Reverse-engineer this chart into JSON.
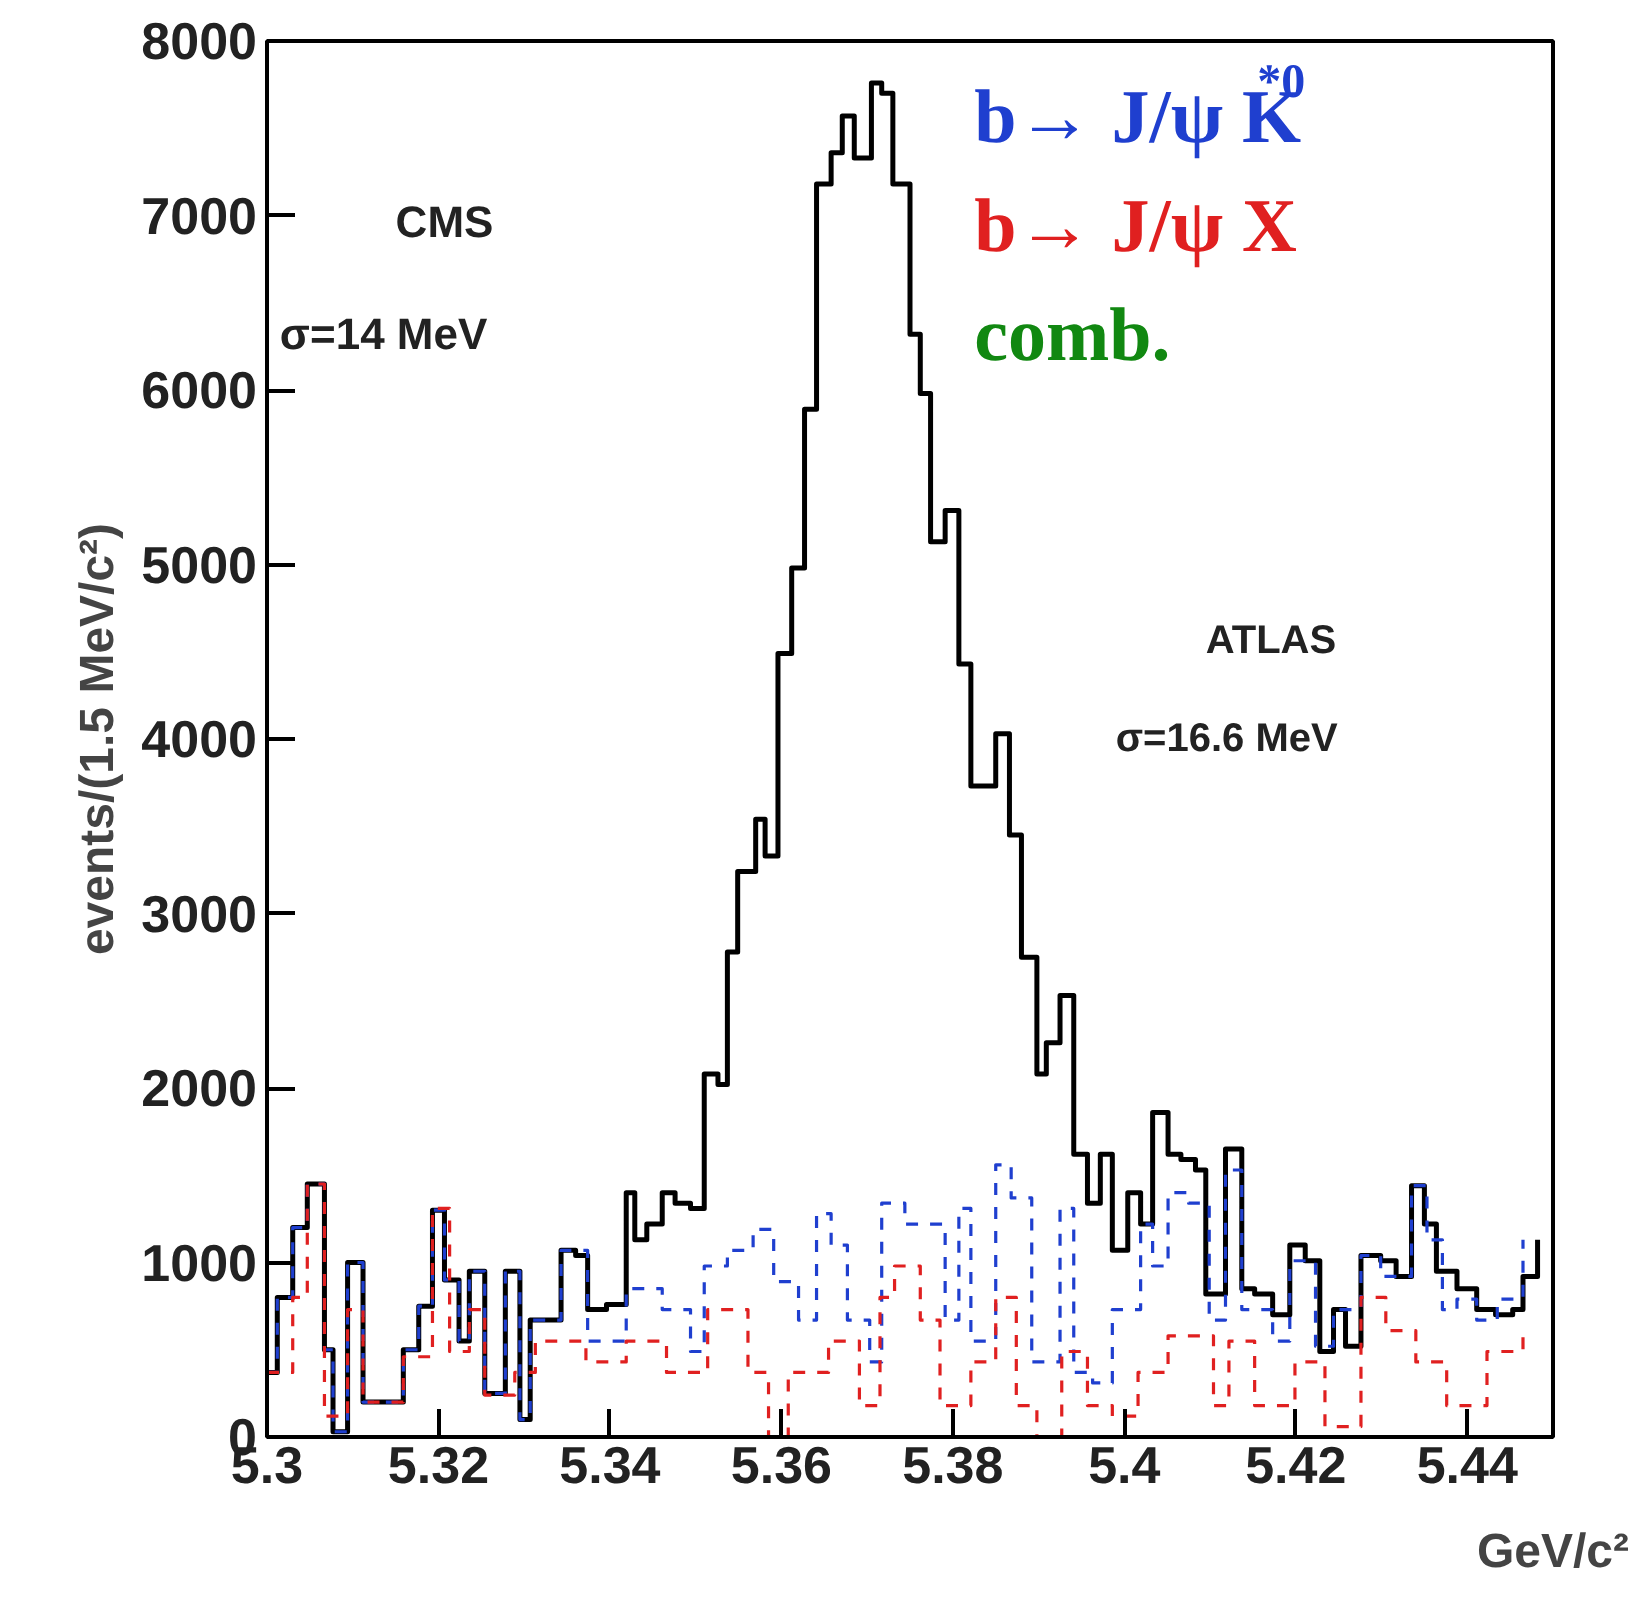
{
  "chart_data": {
    "type": "step",
    "xlabel": "GeV/c²",
    "ylabel": "events/(1.5 MeV/c²)",
    "xlim": [
      5.3,
      5.45
    ],
    "ylim": [
      0,
      8000
    ],
    "xticks": [
      5.3,
      5.32,
      5.34,
      5.36,
      5.38,
      5.4,
      5.42,
      5.44
    ],
    "yticks": [
      0,
      1000,
      2000,
      3000,
      4000,
      5000,
      6000,
      7000,
      8000
    ],
    "grid": false,
    "legend": "top right",
    "series": [
      {
        "color": "#000000",
        "line_style": "solid",
        "x": [
          5.3,
          5.3012,
          5.303,
          5.3047,
          5.3067,
          5.3077,
          5.3094,
          5.3112,
          5.3159,
          5.3177,
          5.3193,
          5.3207,
          5.3224,
          5.3236,
          5.3254,
          5.3278,
          5.3295,
          5.3307,
          5.3343,
          5.336,
          5.3374,
          5.3396,
          5.3419,
          5.3429,
          5.3443,
          5.3461,
          5.3476,
          5.3494,
          5.351,
          5.3526,
          5.3537,
          5.3549,
          5.357,
          5.3581,
          5.3596,
          5.3612,
          5.3627,
          5.3641,
          5.3658,
          5.3671,
          5.3685,
          5.3705,
          5.3717,
          5.373,
          5.375,
          5.3762,
          5.3774,
          5.3791,
          5.3807,
          5.3821,
          5.385,
          5.3866,
          5.388,
          5.3898,
          5.3909,
          5.3925,
          5.3941,
          5.3957,
          5.3972,
          5.3986,
          5.4004,
          5.4019,
          5.4033,
          5.4051,
          5.4066,
          5.4083,
          5.4095,
          5.4118,
          5.4137,
          5.4152,
          5.4173,
          5.4193,
          5.4211,
          5.4228,
          5.4244,
          5.4258,
          5.4276,
          5.4299,
          5.4317,
          5.4335,
          5.435,
          5.4364,
          5.4388,
          5.4411,
          5.4433,
          5.4453,
          5.4465,
          5.4482
        ],
        "values": [
          370,
          800,
          1200,
          1450,
          500,
          30,
          1000,
          200,
          500,
          750,
          1300,
          900,
          550,
          950,
          250,
          950,
          100,
          670,
          1070,
          1040,
          730,
          760,
          1400,
          1130,
          1220,
          1400,
          1340,
          1310,
          2080,
          2020,
          2780,
          3240,
          3540,
          3330,
          4490,
          4980,
          5890,
          7180,
          7360,
          7570,
          7330,
          7760,
          7700,
          7180,
          6320,
          5980,
          5130,
          5310,
          4430,
          3730,
          4030,
          3450,
          2750,
          2080,
          2260,
          2530,
          1620,
          1340,
          1620,
          1070,
          1400,
          1220,
          1860,
          1620,
          1590,
          1530,
          820,
          1650,
          850,
          820,
          700,
          1100,
          1010,
          490,
          730,
          520,
          1040,
          1010,
          920,
          1440,
          1220,
          950,
          850,
          730,
          700,
          730,
          920,
          1130
        ]
      },
      {
        "name": "b→ J/ψ K$^{*0}$",
        "color": "#1f3fcf",
        "line_style": "dashed",
        "x": [
          5.3,
          5.3012,
          5.303,
          5.3047,
          5.3067,
          5.3077,
          5.3094,
          5.3112,
          5.3159,
          5.3177,
          5.3193,
          5.3207,
          5.3224,
          5.3236,
          5.3254,
          5.3278,
          5.3295,
          5.3307,
          5.3343,
          5.3374,
          5.3419,
          5.3461,
          5.3494,
          5.351,
          5.3537,
          5.3567,
          5.3591,
          5.362,
          5.3641,
          5.3658,
          5.3677,
          5.3703,
          5.3717,
          5.3744,
          5.3774,
          5.3791,
          5.3807,
          5.3821,
          5.385,
          5.3868,
          5.3892,
          5.3925,
          5.3941,
          5.3963,
          5.3986,
          5.4019,
          5.4033,
          5.4051,
          5.4075,
          5.4099,
          5.4118,
          5.4137,
          5.4173,
          5.4193,
          5.4223,
          5.4244,
          5.4276,
          5.4299,
          5.4335,
          5.4353,
          5.4371,
          5.4388,
          5.4411,
          5.4435,
          5.4465
        ],
        "values": [
          370,
          800,
          1200,
          1450,
          500,
          30,
          1000,
          200,
          500,
          750,
          1300,
          900,
          550,
          950,
          250,
          950,
          100,
          670,
          1070,
          550,
          850,
          730,
          490,
          980,
          1070,
          1190,
          890,
          670,
          1280,
          1100,
          670,
          430,
          1340,
          1220,
          1220,
          670,
          1310,
          550,
          1560,
          1370,
          430,
          1310,
          370,
          310,
          730,
          1220,
          980,
          1400,
          1340,
          670,
          1530,
          730,
          550,
          1010,
          520,
          730,
          1040,
          920,
          1440,
          1130,
          730,
          790,
          670,
          790,
          1130
        ]
      },
      {
        "name": "b→ J/ψ X",
        "color": "#e02020",
        "line_style": "dashed",
        "x": [
          5.3,
          5.303,
          5.3047,
          5.3067,
          5.3094,
          5.3112,
          5.3159,
          5.3193,
          5.3213,
          5.3236,
          5.3254,
          5.3289,
          5.3313,
          5.3372,
          5.3419,
          5.3466,
          5.3514,
          5.3561,
          5.3585,
          5.3608,
          5.3655,
          5.3691,
          5.3715,
          5.3732,
          5.3762,
          5.3785,
          5.3821,
          5.385,
          5.3874,
          5.3898,
          5.3927,
          5.3957,
          5.3986,
          5.4016,
          5.4051,
          5.4104,
          5.4122,
          5.4152,
          5.4199,
          5.4234,
          5.4276,
          5.4305,
          5.434,
          5.4376,
          5.4423,
          5.4465
        ],
        "values": [
          370,
          800,
          1450,
          120,
          730,
          200,
          460,
          1310,
          490,
          730,
          240,
          370,
          550,
          430,
          550,
          370,
          730,
          370,
          0,
          370,
          550,
          180,
          800,
          980,
          670,
          180,
          430,
          800,
          180,
          0,
          490,
          180,
          120,
          370,
          580,
          180,
          550,
          180,
          430,
          60,
          800,
          610,
          430,
          180,
          490,
          580
        ]
      }
    ],
    "annotations": [
      "CMS",
      "σ=14 MeV",
      "ATLAS",
      "σ=16.6 MeV",
      "comb."
    ]
  }
}
